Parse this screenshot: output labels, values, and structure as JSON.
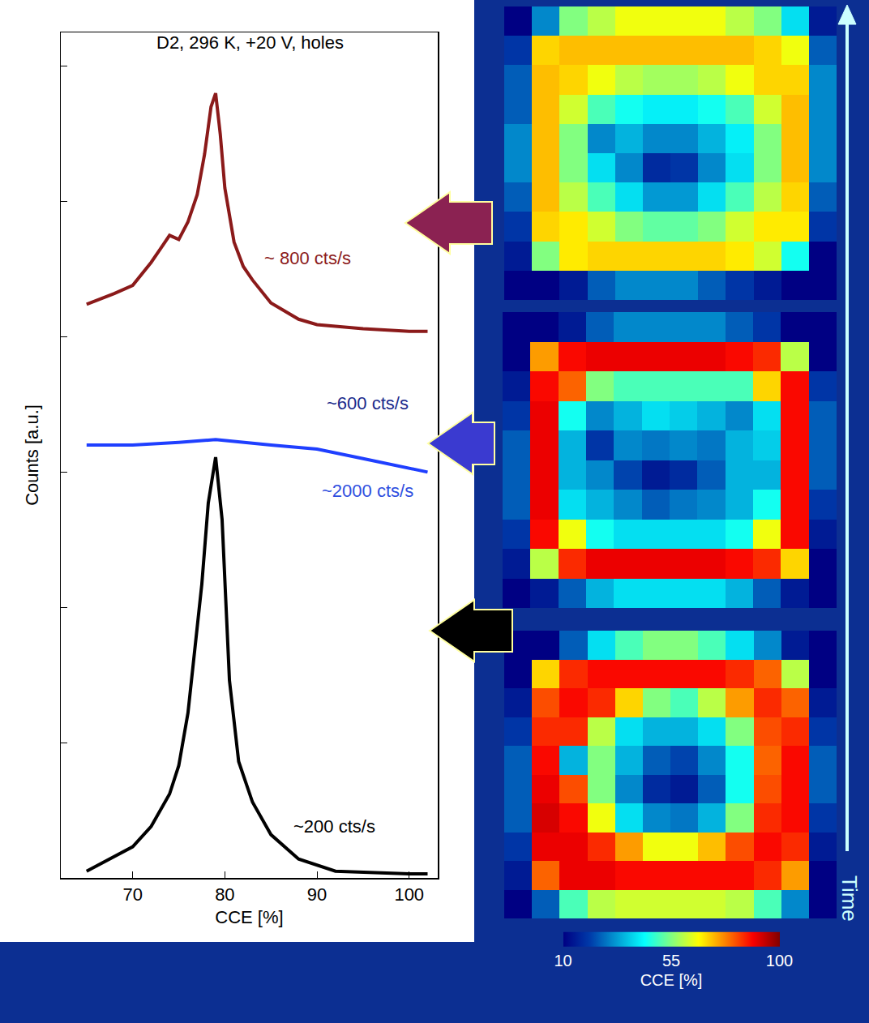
{
  "chart_data": [
    {
      "type": "line",
      "title": "D2, 296 K, +20 V, holes",
      "x_label": "CCE [%]",
      "y_label": "Counts [a.u.]",
      "xlim": [
        62.2,
        103.1
      ],
      "xticks": [
        70,
        80,
        90,
        100
      ],
      "ylim": [
        0,
        6.25
      ],
      "yticks": [
        0,
        1,
        2,
        3,
        4,
        5,
        6
      ],
      "tick_labels": "x",
      "grid": false,
      "series": [
        {
          "color": "#8b1a1a",
          "x": [
            65,
            68,
            70,
            72,
            73,
            74,
            75,
            76,
            77,
            77.8,
            78.5,
            79,
            79.5,
            80,
            81,
            82,
            83,
            85,
            88,
            90,
            95,
            100,
            102
          ],
          "values": [
            4.24,
            4.32,
            4.38,
            4.55,
            4.65,
            4.75,
            4.72,
            4.85,
            5.05,
            5.35,
            5.7,
            5.8,
            5.5,
            5.1,
            4.7,
            4.52,
            4.42,
            4.25,
            4.13,
            4.09,
            4.06,
            4.04,
            4.04
          ]
        },
        {
          "color": "#1f3fff",
          "x": [
            65,
            70,
            75,
            79,
            85,
            90,
            95,
            100,
            102
          ],
          "values": [
            3.2,
            3.2,
            3.22,
            3.24,
            3.2,
            3.17,
            3.1,
            3.03,
            3.0
          ]
        },
        {
          "color": "#000000",
          "x": [
            65,
            70,
            72,
            73,
            74,
            75,
            76,
            77.5,
            78.2,
            79,
            79.7,
            80.5,
            81.5,
            83,
            85,
            88,
            92,
            100,
            102
          ],
          "values": [
            0.05,
            0.23,
            0.38,
            0.5,
            0.62,
            0.83,
            1.22,
            2.17,
            2.77,
            3.11,
            2.65,
            1.46,
            0.86,
            0.56,
            0.32,
            0.14,
            0.05,
            0.03,
            0.03
          ]
        }
      ],
      "annotations": [
        {
          "text": "~ 800 cts/s",
          "x": 89,
          "y": 4.58,
          "color": "#8b1a1a"
        },
        {
          "text": "~600 cts/s",
          "x": 95.5,
          "y": 3.51,
          "color": "#1a2a8c"
        },
        {
          "text": "~2000 cts/s",
          "x": 95.5,
          "y": 2.86,
          "color": "#2f4fe0"
        },
        {
          "text": "~200 cts/s",
          "x": 91.9,
          "y": 0.38,
          "color": "#000000"
        }
      ]
    },
    {
      "type": "heatmap",
      "maps": [
        {
          "color": "#8b2252",
          "cells": [
            [
              10,
              30,
              55,
              60,
              65,
              65,
              65,
              65,
              60,
              55,
              40,
              15
            ],
            [
              20,
              70,
              72,
              72,
              72,
              72,
              72,
              72,
              72,
              70,
              65,
              25
            ],
            [
              25,
              72,
              70,
              65,
              60,
              58,
              58,
              60,
              65,
              70,
              70,
              30
            ],
            [
              25,
              72,
              62,
              50,
              45,
              42,
              42,
              45,
              50,
              62,
              72,
              30
            ],
            [
              30,
              72,
              55,
              30,
              35,
              30,
              30,
              35,
              42,
              55,
              72,
              30
            ],
            [
              30,
              72,
              55,
              40,
              30,
              18,
              20,
              30,
              40,
              55,
              72,
              30
            ],
            [
              25,
              72,
              60,
              50,
              40,
              32,
              32,
              40,
              50,
              60,
              70,
              25
            ],
            [
              20,
              70,
              68,
              62,
              55,
              52,
              52,
              55,
              62,
              68,
              68,
              20
            ],
            [
              15,
              55,
              68,
              70,
              70,
              70,
              70,
              70,
              68,
              62,
              45,
              10
            ],
            [
              5,
              10,
              15,
              25,
              30,
              30,
              30,
              25,
              20,
              15,
              10,
              5
            ]
          ]
        },
        {
          "color": "#3a3ad0",
          "cells": [
            [
              5,
              10,
              15,
              25,
              30,
              30,
              30,
              30,
              25,
              20,
              10,
              5
            ],
            [
              10,
              75,
              88,
              90,
              90,
              90,
              90,
              90,
              88,
              85,
              60,
              10
            ],
            [
              15,
              88,
              80,
              55,
              50,
              50,
              50,
              50,
              50,
              70,
              88,
              20
            ],
            [
              20,
              90,
              45,
              30,
              35,
              40,
              38,
              35,
              30,
              40,
              88,
              25
            ],
            [
              25,
              90,
              35,
              20,
              30,
              28,
              30,
              28,
              35,
              38,
              88,
              25
            ],
            [
              25,
              90,
              35,
              30,
              22,
              15,
              18,
              25,
              35,
              35,
              88,
              25
            ],
            [
              25,
              90,
              40,
              35,
              30,
              25,
              28,
              30,
              35,
              45,
              88,
              20
            ],
            [
              20,
              88,
              65,
              45,
              40,
              40,
              40,
              40,
              45,
              65,
              88,
              15
            ],
            [
              15,
              60,
              85,
              90,
              90,
              90,
              90,
              90,
              88,
              85,
              70,
              10
            ],
            [
              5,
              15,
              25,
              35,
              40,
              40,
              40,
              40,
              35,
              25,
              15,
              5
            ]
          ]
        },
        {
          "color": "#000000",
          "cells": [
            [
              5,
              10,
              25,
              40,
              50,
              55,
              55,
              50,
              40,
              30,
              15,
              5
            ],
            [
              10,
              70,
              85,
              88,
              88,
              88,
              88,
              88,
              85,
              80,
              60,
              10
            ],
            [
              15,
              82,
              88,
              85,
              70,
              55,
              50,
              60,
              75,
              85,
              80,
              15
            ],
            [
              20,
              85,
              85,
              60,
              40,
              35,
              35,
              40,
              55,
              82,
              85,
              20
            ],
            [
              25,
              88,
              35,
              55,
              35,
              25,
              22,
              30,
              45,
              80,
              88,
              25
            ],
            [
              25,
              90,
              82,
              55,
              30,
              18,
              15,
              25,
              45,
              82,
              88,
              25
            ],
            [
              25,
              92,
              88,
              65,
              40,
              30,
              28,
              35,
              55,
              85,
              88,
              20
            ],
            [
              20,
              90,
              90,
              85,
              75,
              65,
              65,
              72,
              82,
              88,
              85,
              15
            ],
            [
              15,
              80,
              90,
              90,
              88,
              88,
              88,
              88,
              88,
              85,
              75,
              10
            ],
            [
              5,
              25,
              50,
              60,
              62,
              62,
              62,
              62,
              60,
              50,
              30,
              5
            ]
          ]
        }
      ],
      "colorbar": {
        "range": [
          10,
          100
        ],
        "ticks": [
          10,
          55,
          100
        ],
        "title": "CCE [%]"
      },
      "annotations": [
        {
          "text": "Time",
          "color": "#ccffff"
        }
      ]
    }
  ]
}
